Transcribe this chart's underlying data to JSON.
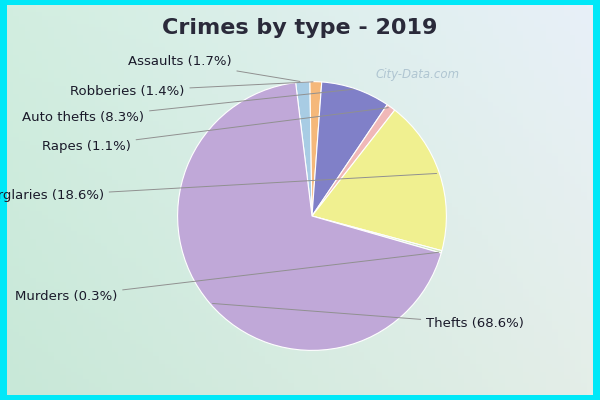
{
  "title": "Crimes by type - 2019",
  "ordered_labels": [
    "Assaults",
    "Robberies",
    "Auto thefts",
    "Rapes",
    "Burglaries",
    "Murders",
    "Thefts"
  ],
  "ordered_values": [
    1.7,
    1.4,
    8.3,
    1.1,
    18.6,
    0.3,
    68.6
  ],
  "ordered_colors": [
    "#a8cce4",
    "#f5b87a",
    "#8080c8",
    "#f0b8b8",
    "#f0f090",
    "#d0e8c0",
    "#c0a8d8"
  ],
  "title_color": "#2a2a3a",
  "title_fontsize": 16,
  "label_fontsize": 9.5,
  "label_color": "#1a1a2a",
  "cyan_border": "#00e8f8",
  "bg_color_tl": "#c8e8d8",
  "bg_color_br": "#e8f0f8",
  "watermark": "City-Data.com",
  "watermark_color": "#a0b8c8"
}
